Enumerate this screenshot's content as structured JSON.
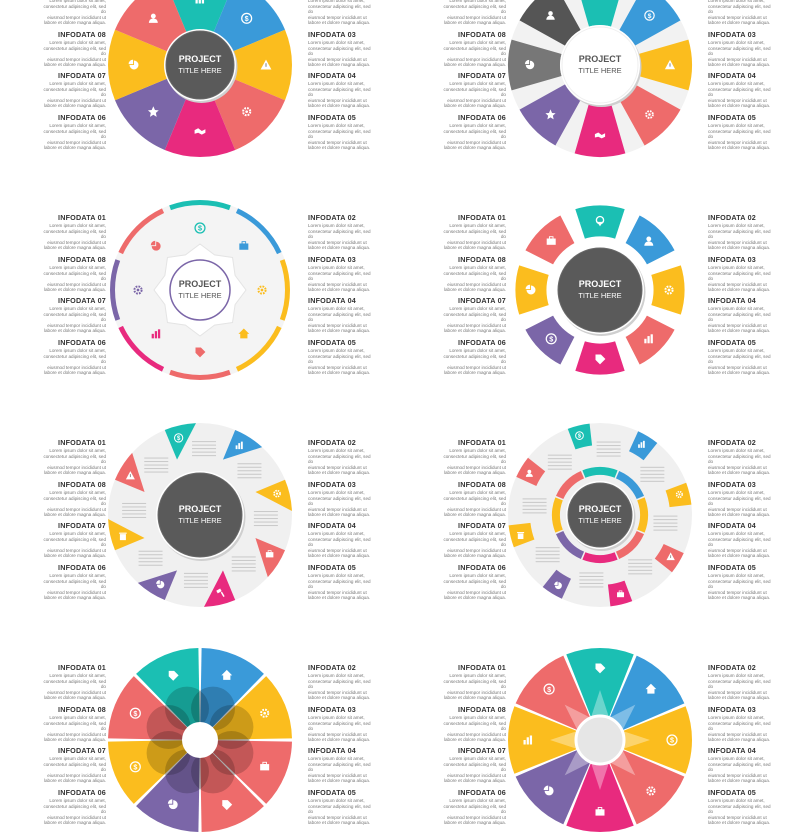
{
  "center_title": {
    "line1": "PROJECT",
    "line2": "TITLE HERE"
  },
  "labels": [
    {
      "title": "INFODATA 01",
      "body": [
        "Lorem ipsum dolor sit amet,",
        "consectetur adipiscing elit, sed do",
        "eiusmod tempor incididunt ut",
        "labore et dolore magna aliqua."
      ]
    },
    {
      "title": "INFODATA 02",
      "body": [
        "Lorem ipsum dolor sit amet,",
        "consectetur adipiscing elit, sed do",
        "eiusmod tempor incididunt ut",
        "labore et dolore magna aliqua."
      ]
    },
    {
      "title": "INFODATA 03",
      "body": [
        "Lorem ipsum dolor sit amet,",
        "consectetur adipiscing elit, sed do",
        "eiusmod tempor incididunt ut",
        "labore et dolore magna aliqua."
      ]
    },
    {
      "title": "INFODATA 04",
      "body": [
        "Lorem ipsum dolor sit amet,",
        "consectetur adipiscing elit, sed do",
        "eiusmod tempor incididunt ut",
        "labore et dolore magna aliqua."
      ]
    },
    {
      "title": "INFODATA 05",
      "body": [
        "Lorem ipsum dolor sit amet,",
        "consectetur adipiscing elit, sed do",
        "eiusmod tempor incididunt ut",
        "labore et dolore magna aliqua."
      ]
    },
    {
      "title": "INFODATA 06",
      "body": [
        "Lorem ipsum dolor sit amet,",
        "consectetur adipiscing elit, sed do",
        "eiusmod tempor incididunt ut",
        "labore et dolore magna aliqua."
      ]
    },
    {
      "title": "INFODATA 07",
      "body": [
        "Lorem ipsum dolor sit amet,",
        "consectetur adipiscing elit, sed do",
        "eiusmod tempor incididunt ut",
        "labore et dolore magna aliqua."
      ]
    },
    {
      "title": "INFODATA 08",
      "body": [
        "Lorem ipsum dolor sit amet,",
        "consectetur adipiscing elit, sed do",
        "eiusmod tempor incididunt ut",
        "labore et dolore magna aliqua."
      ]
    }
  ],
  "colors": {
    "teal": "#1bbfb3",
    "blue": "#3a9ad9",
    "yellow": "#fbbd1e",
    "red": "#ee6b6b",
    "pink": "#e82a7e",
    "purple": "#7b66a8",
    "orange": "#fbbd1e",
    "gray": "#555555",
    "light": "#eeeeee"
  },
  "segment_icons": [
    "chart-icon",
    "dollar-icon",
    "warning-icon",
    "gear-icon",
    "handshake-icon",
    "star-icon",
    "pie-icon",
    "user-icon"
  ],
  "panels": [
    {
      "id": "p1",
      "style": "donut-solid"
    },
    {
      "id": "p2",
      "style": "donut-white-center"
    },
    {
      "id": "p3",
      "style": "ring-outline"
    },
    {
      "id": "p4",
      "style": "tile-ring"
    },
    {
      "id": "p5",
      "style": "pie-callout"
    },
    {
      "id": "p6",
      "style": "pie-text-ring"
    },
    {
      "id": "p7",
      "style": "flower"
    },
    {
      "id": "p8",
      "style": "octagon"
    }
  ]
}
